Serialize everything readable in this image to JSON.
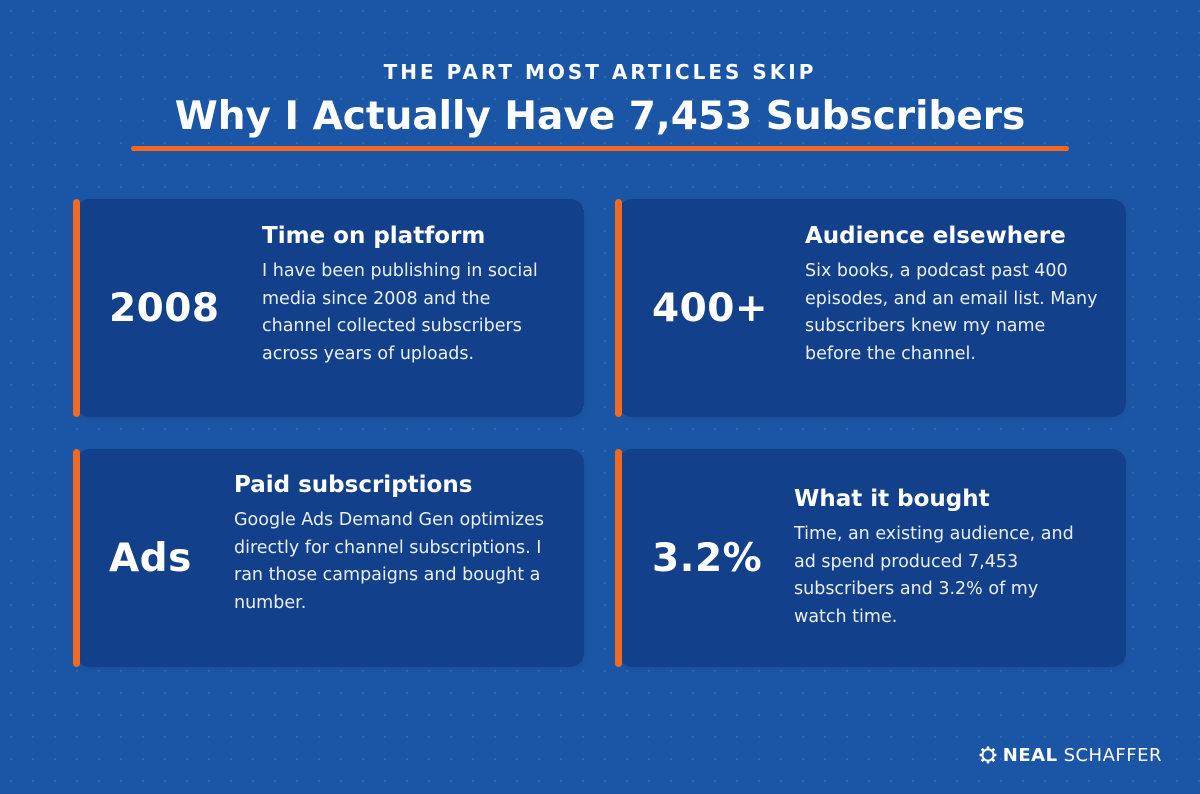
{
  "header": {
    "eyebrow": "THE PART MOST ARTICLES SKIP",
    "title": "Why I Actually Have 7,453 Subscribers",
    "accent_color": "#f26a22"
  },
  "cards": [
    {
      "stat": "2008",
      "heading": "Time on platform",
      "body": "I have been publishing in social media since 2008 and the channel collected subscribers across years of uploads."
    },
    {
      "stat": "400+",
      "heading": "Audience elsewhere",
      "body": "Six books, a podcast past 400 episodes, and an email list. Many subscribers knew my name before the channel."
    },
    {
      "stat": "Ads",
      "heading": "Paid subscriptions",
      "body": "Google Ads Demand Gen optimizes directly for channel subscriptions. I ran those campaigns and bought a number."
    },
    {
      "stat": "3.2%",
      "heading": "What it bought",
      "body": "Time, an existing audience, and ad spend produced 7,453 subscribers and 3.2% of my watch time."
    }
  ],
  "brand": {
    "icon": "gear-logo-icon",
    "first": "NEAL",
    "last": "SCHAFFER"
  },
  "colors": {
    "background": "#1b56a6",
    "card": "#12408a",
    "accent": "#f26a22"
  }
}
